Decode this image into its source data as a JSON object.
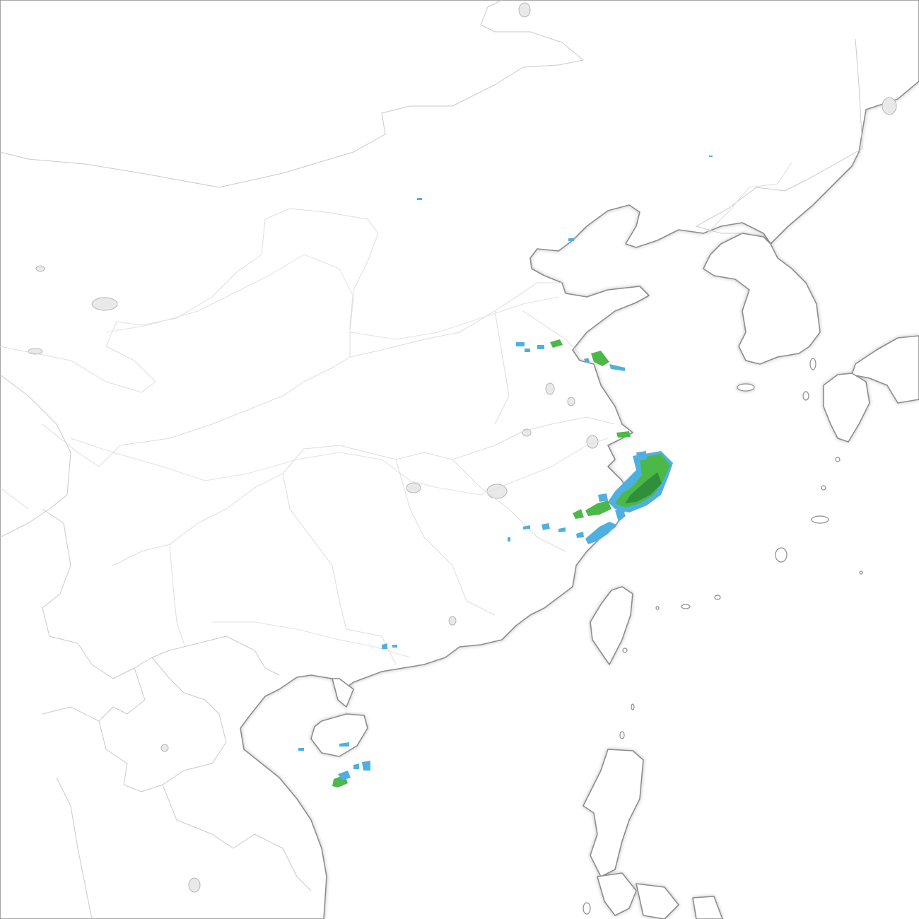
{
  "map": {
    "style": "monochrome basemap with precipitation radar overlay",
    "region": "East Asia",
    "colors": {
      "land": "#ffffff",
      "sea": "#ffffff",
      "coastline": "#8c8c8c",
      "border": "#c9c9c9",
      "echo_light": "#4fb0e0",
      "echo_mid": "#4cb848",
      "echo_dark": "#2f8f3a"
    },
    "radar_levels": [
      "light",
      "moderate",
      "heavy"
    ]
  }
}
